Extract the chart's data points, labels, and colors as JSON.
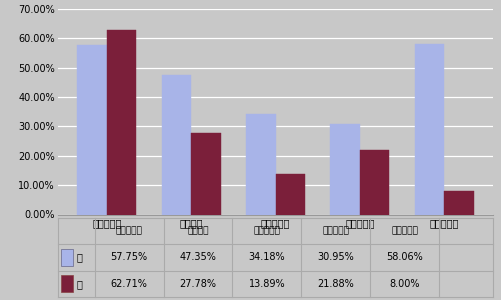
{
  "categories": [
    "化学工程系",
    "机械工程",
    "电气工程系",
    "工商管理系",
    "采矿工程系"
  ],
  "male_values": [
    57.75,
    47.35,
    34.18,
    30.95,
    58.06
  ],
  "female_values": [
    62.71,
    27.78,
    13.89,
    21.88,
    8.0
  ],
  "male_color": "#a8b4e8",
  "female_color": "#7b1f3a",
  "male_label": "男",
  "female_label": "女",
  "ylim": [
    0,
    70
  ],
  "yticks": [
    0,
    10,
    20,
    30,
    40,
    50,
    60,
    70
  ],
  "bg_color": "#c8c8c8",
  "plot_bg_color": "#c8c8c8",
  "table_white_bg": "#ffffff",
  "grid_color": "#ffffff",
  "table_male_values": [
    "57.75%",
    "47.35%",
    "34.18%",
    "30.95%",
    "58.06%"
  ],
  "table_female_values": [
    "62.71%",
    "27.78%",
    "13.89%",
    "21.88%",
    "8.00%"
  ],
  "legend_icon_male": "#a8b4e8",
  "legend_icon_female": "#7b1f3a"
}
